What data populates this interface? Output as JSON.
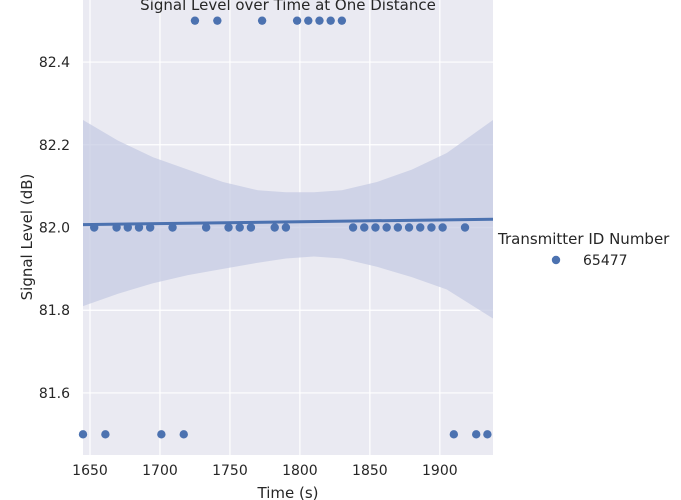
{
  "chart_data": {
    "type": "scatter",
    "title": "Signal Level over Time at One Distance",
    "xlabel": "Time (s)",
    "ylabel": "Signal Level (dB)",
    "xlim": [
      1645,
      1938
    ],
    "ylim": [
      81.45,
      82.55
    ],
    "xticks": [
      "1650",
      "1700",
      "1750",
      "1800",
      "1850",
      "1900"
    ],
    "yticks": [
      "81.6",
      "81.8",
      "82.0",
      "82.2",
      "82.4"
    ],
    "grid": true,
    "legend": {
      "title": "Transmitter ID Number",
      "position": "right",
      "entries": [
        "65477"
      ]
    },
    "colors": {
      "points": "#4c72b0",
      "band": "#c5cbe3",
      "background": "#eaeaf2",
      "grid": "#ffffff"
    },
    "series": [
      {
        "name": "65477",
        "points": [
          [
            1645,
            81.5
          ],
          [
            1653,
            82.0
          ],
          [
            1661,
            81.5
          ],
          [
            1669,
            82.0
          ],
          [
            1677,
            82.0
          ],
          [
            1685,
            82.0
          ],
          [
            1693,
            82.0
          ],
          [
            1701,
            81.5
          ],
          [
            1709,
            82.0
          ],
          [
            1717,
            81.5
          ],
          [
            1725,
            82.5
          ],
          [
            1733,
            82.0
          ],
          [
            1741,
            82.5
          ],
          [
            1749,
            82.0
          ],
          [
            1757,
            82.0
          ],
          [
            1765,
            82.0
          ],
          [
            1773,
            82.5
          ],
          [
            1782,
            82.0
          ],
          [
            1790,
            82.0
          ],
          [
            1798,
            82.5
          ],
          [
            1806,
            82.5
          ],
          [
            1814,
            82.5
          ],
          [
            1822,
            82.5
          ],
          [
            1830,
            82.5
          ],
          [
            1838,
            82.0
          ],
          [
            1846,
            82.0
          ],
          [
            1854,
            82.0
          ],
          [
            1862,
            82.0
          ],
          [
            1870,
            82.0
          ],
          [
            1878,
            82.0
          ],
          [
            1886,
            82.0
          ],
          [
            1894,
            82.0
          ],
          [
            1902,
            82.0
          ],
          [
            1910,
            81.5
          ],
          [
            1918,
            82.0
          ],
          [
            1926,
            81.5
          ],
          [
            1934,
            81.5
          ]
        ]
      }
    ],
    "regression": {
      "x": [
        1645,
        1938
      ],
      "y": [
        82.007,
        82.02
      ],
      "ci_upper": [
        [
          1645,
          82.26
        ],
        [
          1670,
          82.21
        ],
        [
          1695,
          82.17
        ],
        [
          1720,
          82.14
        ],
        [
          1745,
          82.11
        ],
        [
          1770,
          82.09
        ],
        [
          1790,
          82.085
        ],
        [
          1810,
          82.085
        ],
        [
          1830,
          82.09
        ],
        [
          1855,
          82.11
        ],
        [
          1880,
          82.14
        ],
        [
          1905,
          82.18
        ],
        [
          1938,
          82.26
        ]
      ],
      "ci_lower": [
        [
          1645,
          81.81
        ],
        [
          1670,
          81.84
        ],
        [
          1695,
          81.865
        ],
        [
          1720,
          81.885
        ],
        [
          1745,
          81.9
        ],
        [
          1770,
          81.915
        ],
        [
          1790,
          81.925
        ],
        [
          1810,
          81.93
        ],
        [
          1830,
          81.925
        ],
        [
          1855,
          81.905
        ],
        [
          1880,
          81.88
        ],
        [
          1905,
          81.85
        ],
        [
          1938,
          81.78
        ]
      ]
    }
  }
}
